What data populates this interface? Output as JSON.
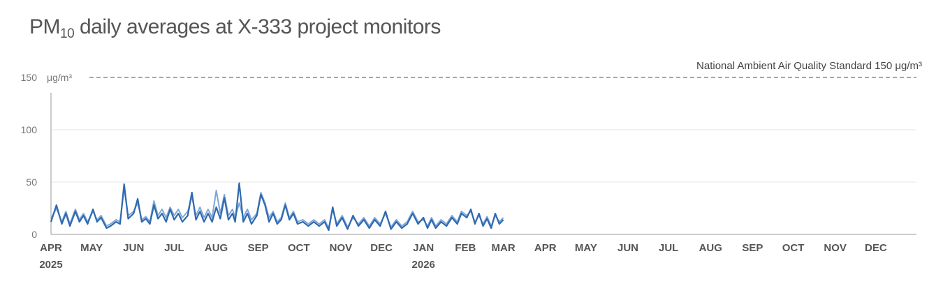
{
  "chart_data": {
    "type": "line",
    "title": {
      "prefix": "PM",
      "subscript": "10",
      "suffix": " daily averages at X-333 project monitors"
    },
    "y_unit": "μg/m³",
    "ylim": [
      0,
      150
    ],
    "y_ticks": [
      "0",
      "50",
      "100",
      "150"
    ],
    "xlim": [
      "2025-04-01",
      "2026-12-31"
    ],
    "x_ticks": [
      {
        "date": "2025-04-01",
        "label": "APR",
        "year": "2025"
      },
      {
        "date": "2025-05-01",
        "label": "MAY",
        "year": ""
      },
      {
        "date": "2025-06-01",
        "label": "JUN",
        "year": ""
      },
      {
        "date": "2025-07-01",
        "label": "JUL",
        "year": ""
      },
      {
        "date": "2025-08-01",
        "label": "AUG",
        "year": ""
      },
      {
        "date": "2025-09-01",
        "label": "SEP",
        "year": ""
      },
      {
        "date": "2025-10-01",
        "label": "OCT",
        "year": ""
      },
      {
        "date": "2025-11-01",
        "label": "NOV",
        "year": ""
      },
      {
        "date": "2025-12-01",
        "label": "DEC",
        "year": ""
      },
      {
        "date": "2026-01-01",
        "label": "JAN",
        "year": "2026"
      },
      {
        "date": "2026-02-01",
        "label": "FEB",
        "year": ""
      },
      {
        "date": "2026-03-01",
        "label": "MAR",
        "year": ""
      },
      {
        "date": "2026-04-01",
        "label": "APR",
        "year": ""
      },
      {
        "date": "2026-05-01",
        "label": "MAY",
        "year": ""
      },
      {
        "date": "2026-06-01",
        "label": "JUN",
        "year": ""
      },
      {
        "date": "2026-07-01",
        "label": "JUL",
        "year": ""
      },
      {
        "date": "2026-08-01",
        "label": "AUG",
        "year": ""
      },
      {
        "date": "2026-09-01",
        "label": "SEP",
        "year": ""
      },
      {
        "date": "2026-10-01",
        "label": "OCT",
        "year": ""
      },
      {
        "date": "2026-11-01",
        "label": "NOV",
        "year": ""
      },
      {
        "date": "2026-12-01",
        "label": "DEC",
        "year": ""
      }
    ],
    "reference_line": {
      "value": 150,
      "label": "National Ambient Air Quality Standard 150 μg/m³",
      "color": "#4a7ab5"
    },
    "grid": true,
    "series": [
      {
        "color": "#2e6ab0",
        "points": [
          [
            "2025-04-01",
            12
          ],
          [
            "2025-04-05",
            28
          ],
          [
            "2025-04-09",
            10
          ],
          [
            "2025-04-12",
            20
          ],
          [
            "2025-04-15",
            8
          ],
          [
            "2025-04-19",
            22
          ],
          [
            "2025-04-22",
            12
          ],
          [
            "2025-04-25",
            18
          ],
          [
            "2025-04-28",
            10
          ],
          [
            "2025-05-02",
            24
          ],
          [
            "2025-05-05",
            12
          ],
          [
            "2025-05-08",
            16
          ],
          [
            "2025-05-12",
            6
          ],
          [
            "2025-05-15",
            8
          ],
          [
            "2025-05-19",
            12
          ],
          [
            "2025-05-22",
            10
          ],
          [
            "2025-05-25",
            48
          ],
          [
            "2025-05-28",
            15
          ],
          [
            "2025-06-01",
            20
          ],
          [
            "2025-06-04",
            34
          ],
          [
            "2025-06-07",
            12
          ],
          [
            "2025-06-10",
            15
          ],
          [
            "2025-06-13",
            10
          ],
          [
            "2025-06-16",
            28
          ],
          [
            "2025-06-19",
            15
          ],
          [
            "2025-06-22",
            20
          ],
          [
            "2025-06-25",
            12
          ],
          [
            "2025-06-28",
            24
          ],
          [
            "2025-07-01",
            14
          ],
          [
            "2025-07-04",
            20
          ],
          [
            "2025-07-07",
            12
          ],
          [
            "2025-07-11",
            18
          ],
          [
            "2025-07-14",
            40
          ],
          [
            "2025-07-17",
            14
          ],
          [
            "2025-07-20",
            22
          ],
          [
            "2025-07-23",
            12
          ],
          [
            "2025-07-26",
            20
          ],
          [
            "2025-07-29",
            12
          ],
          [
            "2025-08-01",
            26
          ],
          [
            "2025-08-04",
            15
          ],
          [
            "2025-08-07",
            35
          ],
          [
            "2025-08-10",
            14
          ],
          [
            "2025-08-13",
            20
          ],
          [
            "2025-08-15",
            12
          ],
          [
            "2025-08-18",
            49
          ],
          [
            "2025-08-21",
            12
          ],
          [
            "2025-08-24",
            20
          ],
          [
            "2025-08-27",
            10
          ],
          [
            "2025-08-31",
            18
          ],
          [
            "2025-09-03",
            38
          ],
          [
            "2025-09-06",
            28
          ],
          [
            "2025-09-09",
            12
          ],
          [
            "2025-09-12",
            20
          ],
          [
            "2025-09-15",
            10
          ],
          [
            "2025-09-18",
            14
          ],
          [
            "2025-09-21",
            28
          ],
          [
            "2025-09-24",
            14
          ],
          [
            "2025-09-27",
            20
          ],
          [
            "2025-09-30",
            10
          ],
          [
            "2025-10-04",
            12
          ],
          [
            "2025-10-08",
            8
          ],
          [
            "2025-10-12",
            12
          ],
          [
            "2025-10-16",
            8
          ],
          [
            "2025-10-20",
            12
          ],
          [
            "2025-10-23",
            4
          ],
          [
            "2025-10-26",
            26
          ],
          [
            "2025-10-29",
            8
          ],
          [
            "2025-11-02",
            16
          ],
          [
            "2025-11-06",
            5
          ],
          [
            "2025-11-10",
            18
          ],
          [
            "2025-11-14",
            8
          ],
          [
            "2025-11-18",
            14
          ],
          [
            "2025-11-22",
            6
          ],
          [
            "2025-11-26",
            14
          ],
          [
            "2025-11-30",
            8
          ],
          [
            "2025-12-04",
            22
          ],
          [
            "2025-12-08",
            5
          ],
          [
            "2025-12-12",
            12
          ],
          [
            "2025-12-16",
            6
          ],
          [
            "2025-12-20",
            10
          ],
          [
            "2025-12-24",
            20
          ],
          [
            "2025-12-28",
            10
          ],
          [
            "2026-01-01",
            16
          ],
          [
            "2026-01-04",
            6
          ],
          [
            "2026-01-07",
            14
          ],
          [
            "2026-01-10",
            6
          ],
          [
            "2026-01-14",
            12
          ],
          [
            "2026-01-18",
            8
          ],
          [
            "2026-01-22",
            16
          ],
          [
            "2026-01-26",
            10
          ],
          [
            "2026-01-29",
            20
          ],
          [
            "2026-02-02",
            16
          ],
          [
            "2026-02-05",
            24
          ],
          [
            "2026-02-08",
            10
          ],
          [
            "2026-02-11",
            20
          ],
          [
            "2026-02-14",
            8
          ],
          [
            "2026-02-17",
            15
          ],
          [
            "2026-02-20",
            6
          ],
          [
            "2026-02-23",
            20
          ],
          [
            "2026-02-26",
            10
          ],
          [
            "2026-03-01",
            14
          ]
        ]
      },
      {
        "color": "#7fa6d6",
        "points": [
          [
            "2025-04-01",
            15
          ],
          [
            "2025-04-05",
            25
          ],
          [
            "2025-04-09",
            12
          ],
          [
            "2025-04-12",
            22
          ],
          [
            "2025-04-15",
            10
          ],
          [
            "2025-04-19",
            24
          ],
          [
            "2025-04-22",
            14
          ],
          [
            "2025-04-25",
            20
          ],
          [
            "2025-04-28",
            12
          ],
          [
            "2025-05-02",
            22
          ],
          [
            "2025-05-05",
            14
          ],
          [
            "2025-05-08",
            18
          ],
          [
            "2025-05-12",
            8
          ],
          [
            "2025-05-15",
            10
          ],
          [
            "2025-05-19",
            14
          ],
          [
            "2025-05-22",
            12
          ],
          [
            "2025-05-25",
            44
          ],
          [
            "2025-05-28",
            18
          ],
          [
            "2025-06-01",
            22
          ],
          [
            "2025-06-04",
            30
          ],
          [
            "2025-06-07",
            14
          ],
          [
            "2025-06-10",
            17
          ],
          [
            "2025-06-13",
            12
          ],
          [
            "2025-06-16",
            32
          ],
          [
            "2025-06-19",
            18
          ],
          [
            "2025-06-22",
            24
          ],
          [
            "2025-06-25",
            16
          ],
          [
            "2025-06-28",
            26
          ],
          [
            "2025-07-01",
            18
          ],
          [
            "2025-07-04",
            24
          ],
          [
            "2025-07-07",
            16
          ],
          [
            "2025-07-11",
            22
          ],
          [
            "2025-07-14",
            36
          ],
          [
            "2025-07-17",
            18
          ],
          [
            "2025-07-20",
            26
          ],
          [
            "2025-07-23",
            16
          ],
          [
            "2025-07-26",
            24
          ],
          [
            "2025-07-29",
            16
          ],
          [
            "2025-08-01",
            42
          ],
          [
            "2025-08-04",
            20
          ],
          [
            "2025-08-07",
            38
          ],
          [
            "2025-08-10",
            18
          ],
          [
            "2025-08-13",
            24
          ],
          [
            "2025-08-15",
            16
          ],
          [
            "2025-08-18",
            30
          ],
          [
            "2025-08-21",
            16
          ],
          [
            "2025-08-24",
            24
          ],
          [
            "2025-08-27",
            14
          ],
          [
            "2025-08-31",
            20
          ],
          [
            "2025-09-03",
            40
          ],
          [
            "2025-09-06",
            30
          ],
          [
            "2025-09-09",
            16
          ],
          [
            "2025-09-12",
            22
          ],
          [
            "2025-09-15",
            12
          ],
          [
            "2025-09-18",
            16
          ],
          [
            "2025-09-21",
            30
          ],
          [
            "2025-09-24",
            16
          ],
          [
            "2025-09-27",
            22
          ],
          [
            "2025-09-30",
            12
          ],
          [
            "2025-10-04",
            14
          ],
          [
            "2025-10-08",
            10
          ],
          [
            "2025-10-12",
            14
          ],
          [
            "2025-10-16",
            10
          ],
          [
            "2025-10-20",
            14
          ],
          [
            "2025-10-23",
            6
          ],
          [
            "2025-10-26",
            24
          ],
          [
            "2025-10-29",
            10
          ],
          [
            "2025-11-02",
            18
          ],
          [
            "2025-11-06",
            7
          ],
          [
            "2025-11-10",
            16
          ],
          [
            "2025-11-14",
            10
          ],
          [
            "2025-11-18",
            16
          ],
          [
            "2025-11-22",
            8
          ],
          [
            "2025-11-26",
            16
          ],
          [
            "2025-11-30",
            10
          ],
          [
            "2025-12-04",
            20
          ],
          [
            "2025-12-08",
            7
          ],
          [
            "2025-12-12",
            14
          ],
          [
            "2025-12-16",
            8
          ],
          [
            "2025-12-20",
            12
          ],
          [
            "2025-12-24",
            22
          ],
          [
            "2025-12-28",
            12
          ],
          [
            "2026-01-01",
            14
          ],
          [
            "2026-01-04",
            8
          ],
          [
            "2026-01-07",
            16
          ],
          [
            "2026-01-10",
            8
          ],
          [
            "2026-01-14",
            14
          ],
          [
            "2026-01-18",
            10
          ],
          [
            "2026-01-22",
            18
          ],
          [
            "2026-01-26",
            12
          ],
          [
            "2026-01-29",
            22
          ],
          [
            "2026-02-02",
            18
          ],
          [
            "2026-02-05",
            22
          ],
          [
            "2026-02-08",
            12
          ],
          [
            "2026-02-11",
            18
          ],
          [
            "2026-02-14",
            10
          ],
          [
            "2026-02-17",
            17
          ],
          [
            "2026-02-20",
            8
          ],
          [
            "2026-02-23",
            18
          ],
          [
            "2026-02-26",
            12
          ],
          [
            "2026-03-01",
            16
          ]
        ]
      }
    ]
  }
}
